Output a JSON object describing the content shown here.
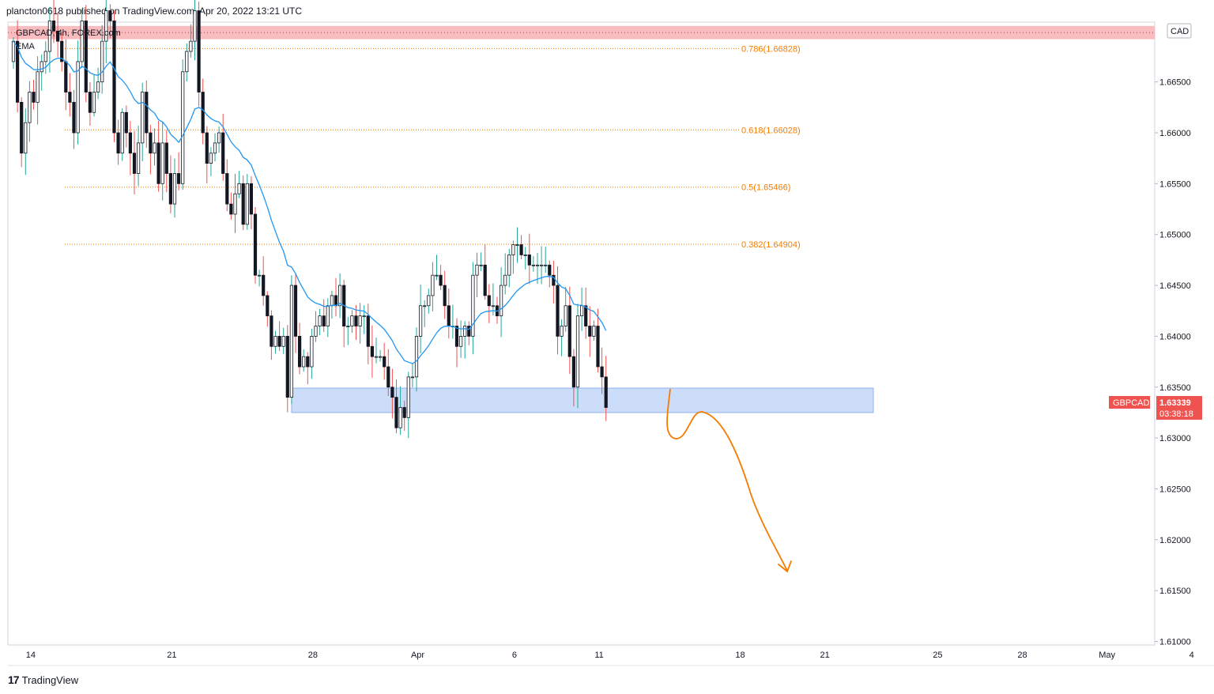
{
  "header": {
    "publisher": "plancton0618 published on TradingView.com, Apr 20, 2022 13:21 UTC"
  },
  "footer": {
    "brand": "TradingView"
  },
  "colors": {
    "up": "#26a69a",
    "down": "#ef5350",
    "body": "#131722",
    "ema": "#2196f3",
    "fib": "#f57c00",
    "zone": "#bbd1f8",
    "resistance": "#f8b5b8",
    "arrow": "#f57c00"
  },
  "chart_data": {
    "type": "candlestick",
    "symbol_legend": "GBPCAD, 4h, FOREX.com",
    "indicator_legend": "EMA",
    "currency": "CAD",
    "ylim": [
      1.6095,
      1.6715
    ],
    "y_ticks": [
      {
        "v": 1.665,
        "label": "1.66500"
      },
      {
        "v": 1.66,
        "label": "1.66000"
      },
      {
        "v": 1.655,
        "label": "1.65500"
      },
      {
        "v": 1.65,
        "label": "1.65000"
      },
      {
        "v": 1.645,
        "label": "1.64500"
      },
      {
        "v": 1.64,
        "label": "1.64000"
      },
      {
        "v": 1.635,
        "label": "1.63500"
      },
      {
        "v": 1.63,
        "label": "1.63000"
      },
      {
        "v": 1.625,
        "label": "1.62500"
      },
      {
        "v": 1.62,
        "label": "1.62000"
      },
      {
        "v": 1.615,
        "label": "1.61500"
      },
      {
        "v": 1.61,
        "label": "1.61000"
      }
    ],
    "x_ticks": [
      {
        "bar": 4.3,
        "label": "14"
      },
      {
        "bar": 39.3,
        "label": "21"
      },
      {
        "bar": 74.3,
        "label": "28"
      },
      {
        "bar": 100.3,
        "label": "Apr"
      },
      {
        "bar": 124.3,
        "label": "6"
      },
      {
        "bar": 145.3,
        "label": "11"
      },
      {
        "bar": 180.3,
        "label": "18"
      },
      {
        "bar": 201.3,
        "label": "21"
      },
      {
        "bar": 229.3,
        "label": "25"
      },
      {
        "bar": 250.3,
        "label": "28"
      },
      {
        "bar": 271.3,
        "label": "May"
      },
      {
        "bar": 292.3,
        "label": "4"
      }
    ],
    "fib_levels": [
      {
        "level": 0.786,
        "price": 1.66828,
        "label": "0.786(1.66828)"
      },
      {
        "level": 0.618,
        "price": 1.66028,
        "label": "0.618(1.66028)"
      },
      {
        "level": 0.5,
        "price": 1.65466,
        "label": "0.5(1.65466)"
      },
      {
        "level": 0.382,
        "price": 1.64904,
        "label": "0.382(1.64904)"
      }
    ],
    "resistance_zone": {
      "from": 1.6692,
      "to": 1.6705
    },
    "support_zone": {
      "from": 1.6325,
      "to": 1.6349
    },
    "last_price": {
      "symbol": "GBPCAD",
      "price": "1.63339",
      "countdown": "03:38:18"
    },
    "waypoints": [
      [
        0,
        1.669
      ],
      [
        1,
        1.663
      ],
      [
        2,
        1.658
      ],
      [
        3,
        1.661
      ],
      [
        4,
        1.664
      ],
      [
        5,
        1.663
      ],
      [
        6,
        1.666
      ],
      [
        7,
        1.667
      ],
      [
        8,
        1.668
      ],
      [
        9,
        1.671
      ],
      [
        10,
        1.67
      ],
      [
        11,
        1.669
      ],
      [
        12,
        1.667
      ],
      [
        13,
        1.664
      ],
      [
        14,
        1.663
      ],
      [
        15,
        1.66
      ],
      [
        16,
        1.667
      ],
      [
        17,
        1.671
      ],
      [
        18,
        1.664
      ],
      [
        19,
        1.662
      ],
      [
        20,
        1.664
      ],
      [
        21,
        1.665
      ],
      [
        22,
        1.669
      ],
      [
        23,
        1.672
      ],
      [
        24,
        1.671
      ],
      [
        25,
        1.66
      ],
      [
        26,
        1.658
      ],
      [
        27,
        1.662
      ],
      [
        28,
        1.66
      ],
      [
        29,
        1.658
      ],
      [
        30,
        1.656
      ],
      [
        31,
        1.659
      ],
      [
        32,
        1.664
      ],
      [
        33,
        1.66
      ],
      [
        34,
        1.658
      ],
      [
        35,
        1.659
      ],
      [
        36,
        1.655
      ],
      [
        37,
        1.659
      ],
      [
        38,
        1.656
      ],
      [
        39,
        1.653
      ],
      [
        40,
        1.656
      ],
      [
        41,
        1.655
      ],
      [
        42,
        1.666
      ],
      [
        43,
        1.668
      ],
      [
        44,
        1.669
      ],
      [
        45,
        1.672
      ],
      [
        46,
        1.664
      ],
      [
        47,
        1.66
      ],
      [
        48,
        1.657
      ],
      [
        49,
        1.658
      ],
      [
        50,
        1.659
      ],
      [
        51,
        1.66
      ],
      [
        52,
        1.656
      ],
      [
        53,
        1.653
      ],
      [
        54,
        1.652
      ],
      [
        55,
        1.654
      ],
      [
        56,
        1.655
      ],
      [
        57,
        1.651
      ],
      [
        58,
        1.655
      ],
      [
        59,
        1.652
      ],
      [
        60,
        1.646
      ],
      [
        61,
        1.646
      ],
      [
        62,
        1.644
      ],
      [
        63,
        1.642
      ],
      [
        64,
        1.639
      ],
      [
        65,
        1.64
      ],
      [
        66,
        1.639
      ],
      [
        67,
        1.64
      ],
      [
        68,
        1.634
      ],
      [
        69,
        1.645
      ],
      [
        70,
        1.64
      ],
      [
        71,
        1.637
      ],
      [
        72,
        1.638
      ],
      [
        73,
        1.637
      ],
      [
        74,
        1.64
      ],
      [
        75,
        1.641
      ],
      [
        76,
        1.642
      ],
      [
        77,
        1.641
      ],
      [
        78,
        1.643
      ],
      [
        79,
        1.644
      ],
      [
        80,
        1.643
      ],
      [
        81,
        1.645
      ],
      [
        82,
        1.641
      ],
      [
        83,
        1.641
      ],
      [
        84,
        1.642
      ],
      [
        85,
        1.641
      ],
      [
        86,
        1.642
      ],
      [
        87,
        1.642
      ],
      [
        88,
        1.639
      ],
      [
        89,
        1.638
      ],
      [
        90,
        1.638
      ],
      [
        91,
        1.638
      ],
      [
        92,
        1.637
      ],
      [
        93,
        1.635
      ],
      [
        94,
        1.634
      ],
      [
        95,
        1.631
      ],
      [
        96,
        1.633
      ],
      [
        97,
        1.632
      ],
      [
        98,
        1.636
      ],
      [
        99,
        1.636
      ],
      [
        100,
        1.64
      ],
      [
        101,
        1.643
      ],
      [
        102,
        1.643
      ],
      [
        103,
        1.644
      ],
      [
        104,
        1.646
      ],
      [
        105,
        1.646
      ],
      [
        106,
        1.645
      ],
      [
        107,
        1.643
      ],
      [
        108,
        1.641
      ],
      [
        109,
        1.641
      ],
      [
        110,
        1.639
      ],
      [
        111,
        1.64
      ],
      [
        112,
        1.641
      ],
      [
        113,
        1.64
      ],
      [
        114,
        1.646
      ],
      [
        115,
        1.647
      ],
      [
        116,
        1.647
      ],
      [
        117,
        1.644
      ],
      [
        118,
        1.643
      ],
      [
        119,
        1.643
      ],
      [
        120,
        1.642
      ],
      [
        121,
        1.645
      ],
      [
        122,
        1.646
      ],
      [
        123,
        1.648
      ],
      [
        124,
        1.649
      ],
      [
        125,
        1.649
      ],
      [
        126,
        1.648
      ],
      [
        127,
        1.648
      ],
      [
        128,
        1.647
      ],
      [
        129,
        1.647
      ],
      [
        130,
        1.647
      ],
      [
        131,
        1.647
      ],
      [
        132,
        1.647
      ],
      [
        133,
        1.646
      ],
      [
        134,
        1.645
      ],
      [
        135,
        1.64
      ],
      [
        136,
        1.641
      ],
      [
        137,
        1.643
      ],
      [
        138,
        1.638
      ],
      [
        139,
        1.635
      ],
      [
        140,
        1.642
      ],
      [
        141,
        1.643
      ],
      [
        142,
        1.641
      ],
      [
        143,
        1.64
      ],
      [
        144,
        1.641
      ],
      [
        145,
        1.637
      ],
      [
        146,
        1.636
      ],
      [
        147,
        1.633
      ]
    ]
  }
}
